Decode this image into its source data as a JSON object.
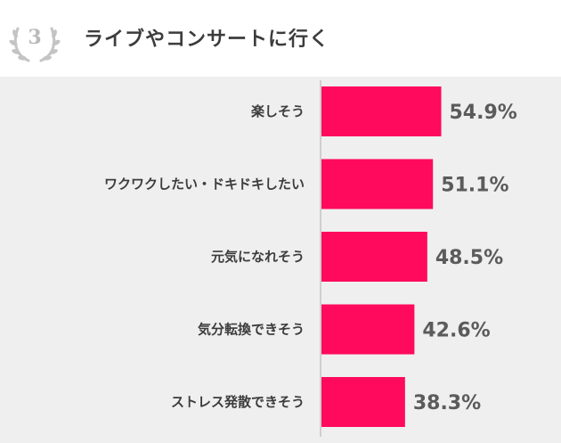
{
  "header": {
    "rank": "3",
    "title": "ライブやコンサートに行く"
  },
  "colors": {
    "bar": "#ff0a5c",
    "axis": "#cfcfcf",
    "badge": "#b9b9b9"
  },
  "chart_data": {
    "type": "bar",
    "orientation": "horizontal",
    "title": "ライブやコンサートに行く",
    "categories": [
      "楽しそう",
      "ワクワクしたい・ドキドキしたい",
      "元気になれそう",
      "気分転換できそう",
      "ストレス発散できそう"
    ],
    "values": [
      54.9,
      51.1,
      48.5,
      42.6,
      38.3
    ],
    "value_labels": [
      "54.9%",
      "51.1%",
      "48.5%",
      "42.6%",
      "38.3%"
    ],
    "unit": "%",
    "xlim": [
      0,
      100
    ],
    "grid": false,
    "legend": "none"
  }
}
